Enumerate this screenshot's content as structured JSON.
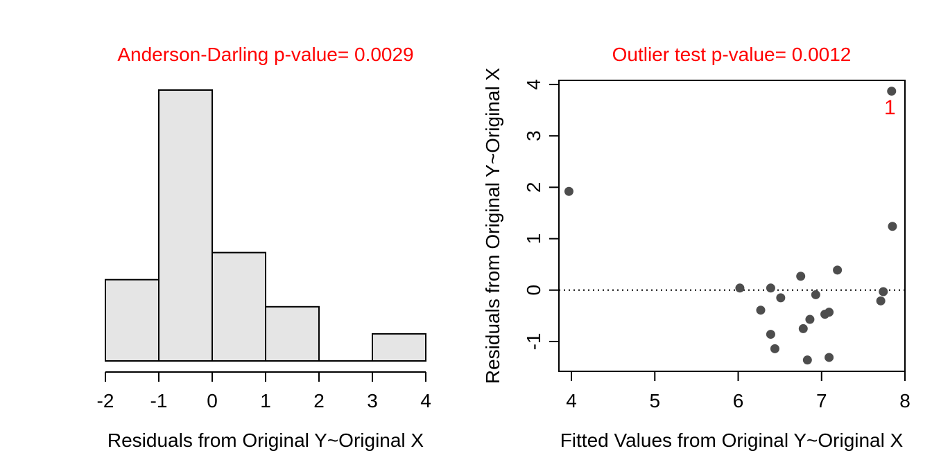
{
  "chart_data": [
    {
      "type": "histogram",
      "title": "Anderson-Darling p-value= 0.0029",
      "xlabel": "Residuals from Original Y~Original X",
      "ylabel": "",
      "bins": [
        {
          "from": -2,
          "to": -1,
          "count": 3
        },
        {
          "from": -1,
          "to": 0,
          "count": 10
        },
        {
          "from": 0,
          "to": 1,
          "count": 4
        },
        {
          "from": 1,
          "to": 2,
          "count": 2
        },
        {
          "from": 2,
          "to": 3,
          "count": 0
        },
        {
          "from": 3,
          "to": 4,
          "count": 1
        }
      ],
      "xlim": [
        -2,
        4
      ],
      "ylim": [
        0,
        10
      ],
      "xticks": [
        "-2",
        "-1",
        "0",
        "1",
        "2",
        "3",
        "4"
      ],
      "bar_fill": "#e5e5e5",
      "bar_stroke": "#000000",
      "title_color": "#ff0000",
      "grid": false
    },
    {
      "type": "scatter",
      "title": "Outlier test p-value= 0.0012",
      "xlabel": "Fitted Values from Original Y~Original X",
      "ylabel": "Residuals from Original Y~Original X",
      "xlim": [
        3.85,
        8.0
      ],
      "ylim": [
        -1.58,
        4.08
      ],
      "xticks": [
        "4",
        "5",
        "6",
        "7",
        "8"
      ],
      "yticks": [
        "-1",
        "0",
        "1",
        "2",
        "3",
        "4"
      ],
      "points": [
        {
          "x": 3.97,
          "y": 1.92
        },
        {
          "x": 6.02,
          "y": 0.04
        },
        {
          "x": 6.27,
          "y": -0.39
        },
        {
          "x": 6.39,
          "y": 0.04
        },
        {
          "x": 6.39,
          "y": -0.86
        },
        {
          "x": 6.44,
          "y": -1.14
        },
        {
          "x": 6.51,
          "y": -0.15
        },
        {
          "x": 6.75,
          "y": 0.27
        },
        {
          "x": 6.78,
          "y": -0.75
        },
        {
          "x": 6.83,
          "y": -1.36
        },
        {
          "x": 6.86,
          "y": -0.57
        },
        {
          "x": 6.93,
          "y": -0.09
        },
        {
          "x": 7.04,
          "y": -0.47
        },
        {
          "x": 7.09,
          "y": -0.43
        },
        {
          "x": 7.09,
          "y": -1.31
        },
        {
          "x": 7.19,
          "y": 0.39
        },
        {
          "x": 7.71,
          "y": -0.21
        },
        {
          "x": 7.74,
          "y": -0.03
        },
        {
          "x": 7.84,
          "y": 3.87
        },
        {
          "x": 7.85,
          "y": 1.24
        }
      ],
      "reference_line": {
        "y": 0,
        "style": "dotted"
      },
      "annotations": [
        {
          "text": "1",
          "x": 7.82,
          "y": 3.42,
          "color": "#ff0000"
        }
      ],
      "point_color": "#4d4d4d",
      "title_color": "#ff0000",
      "grid": false
    }
  ]
}
